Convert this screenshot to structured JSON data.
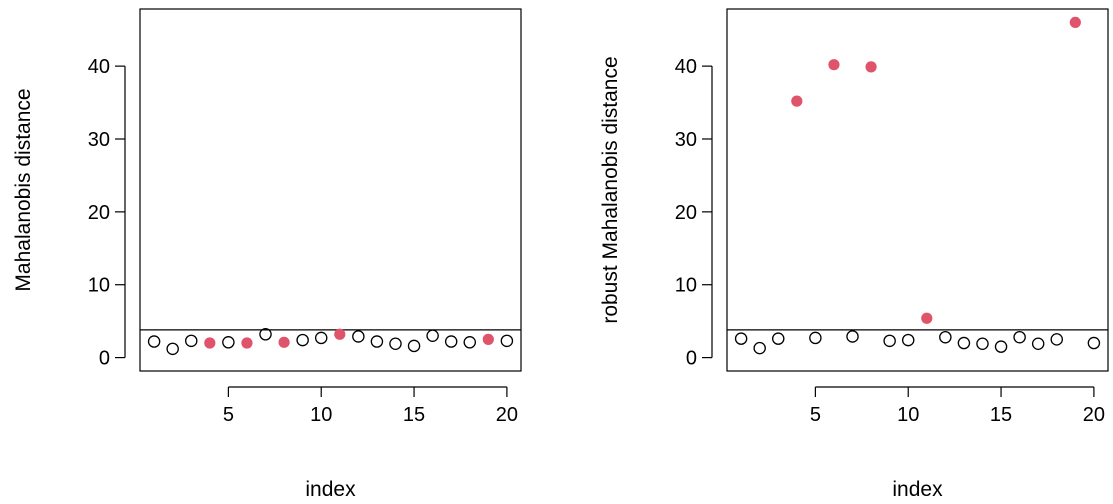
{
  "chart_data": [
    {
      "type": "scatter",
      "title": "",
      "xlabel": "index",
      "ylabel": "Mahalanobis distance",
      "xlim": [
        0.24,
        20.76
      ],
      "ylim": [
        -1.84,
        47.84
      ],
      "x_ticks": [
        5,
        10,
        15,
        20
      ],
      "y_ticks": [
        0,
        10,
        20,
        30,
        40
      ],
      "grid": false,
      "legend": "none",
      "threshold_line": 3.8,
      "colors": {
        "outlier": "#DF536B",
        "normal": "#000000",
        "line": "#000000"
      },
      "points": [
        {
          "x": 1,
          "y": 2.2,
          "outlier": false
        },
        {
          "x": 2,
          "y": 1.2,
          "outlier": false
        },
        {
          "x": 3,
          "y": 2.3,
          "outlier": false
        },
        {
          "x": 4,
          "y": 2.0,
          "outlier": true
        },
        {
          "x": 5,
          "y": 2.1,
          "outlier": false
        },
        {
          "x": 6,
          "y": 2.0,
          "outlier": true
        },
        {
          "x": 7,
          "y": 3.2,
          "outlier": false
        },
        {
          "x": 8,
          "y": 2.1,
          "outlier": true
        },
        {
          "x": 9,
          "y": 2.4,
          "outlier": false
        },
        {
          "x": 10,
          "y": 2.7,
          "outlier": false
        },
        {
          "x": 11,
          "y": 3.2,
          "outlier": true
        },
        {
          "x": 12,
          "y": 2.9,
          "outlier": false
        },
        {
          "x": 13,
          "y": 2.2,
          "outlier": false
        },
        {
          "x": 14,
          "y": 1.9,
          "outlier": false
        },
        {
          "x": 15,
          "y": 1.6,
          "outlier": false
        },
        {
          "x": 16,
          "y": 3.0,
          "outlier": false
        },
        {
          "x": 17,
          "y": 2.2,
          "outlier": false
        },
        {
          "x": 18,
          "y": 2.1,
          "outlier": false
        },
        {
          "x": 19,
          "y": 2.5,
          "outlier": true
        },
        {
          "x": 20,
          "y": 2.3,
          "outlier": false
        }
      ]
    },
    {
      "type": "scatter",
      "title": "",
      "xlabel": "index",
      "ylabel": "robust Mahalanobis distance",
      "xlim": [
        0.24,
        20.76
      ],
      "ylim": [
        -1.84,
        47.84
      ],
      "x_ticks": [
        5,
        10,
        15,
        20
      ],
      "y_ticks": [
        0,
        10,
        20,
        30,
        40
      ],
      "grid": false,
      "legend": "none",
      "threshold_line": 3.8,
      "colors": {
        "outlier": "#DF536B",
        "normal": "#000000",
        "line": "#000000"
      },
      "points": [
        {
          "x": 1,
          "y": 2.6,
          "outlier": false
        },
        {
          "x": 2,
          "y": 1.3,
          "outlier": false
        },
        {
          "x": 3,
          "y": 2.6,
          "outlier": false
        },
        {
          "x": 4,
          "y": 35.2,
          "outlier": true
        },
        {
          "x": 5,
          "y": 2.7,
          "outlier": false
        },
        {
          "x": 6,
          "y": 40.2,
          "outlier": true
        },
        {
          "x": 7,
          "y": 2.9,
          "outlier": false
        },
        {
          "x": 8,
          "y": 39.9,
          "outlier": true
        },
        {
          "x": 9,
          "y": 2.3,
          "outlier": false
        },
        {
          "x": 10,
          "y": 2.4,
          "outlier": false
        },
        {
          "x": 11,
          "y": 5.4,
          "outlier": true
        },
        {
          "x": 12,
          "y": 2.8,
          "outlier": false
        },
        {
          "x": 13,
          "y": 2.0,
          "outlier": false
        },
        {
          "x": 14,
          "y": 1.9,
          "outlier": false
        },
        {
          "x": 15,
          "y": 1.5,
          "outlier": false
        },
        {
          "x": 16,
          "y": 2.8,
          "outlier": false
        },
        {
          "x": 17,
          "y": 1.9,
          "outlier": false
        },
        {
          "x": 18,
          "y": 2.5,
          "outlier": false
        },
        {
          "x": 19,
          "y": 46.0,
          "outlier": true
        },
        {
          "x": 20,
          "y": 2.0,
          "outlier": false
        }
      ]
    }
  ]
}
